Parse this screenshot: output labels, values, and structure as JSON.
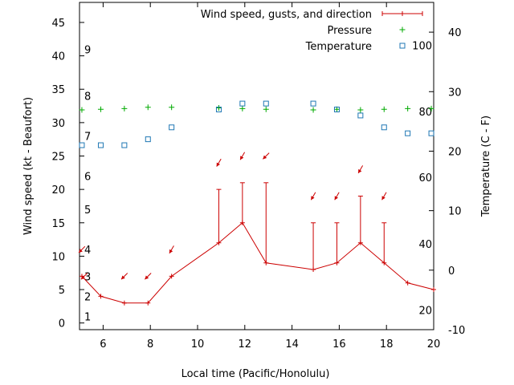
{
  "chart_data": {
    "type": "line",
    "xlabel": "Local time (Pacific/Honolulu)",
    "ylabel_left": "Wind speed (kt - Beaufort)",
    "ylabel_right": "Temperature (C - F)",
    "xlim": [
      5,
      20
    ],
    "ylim_left": [
      -1,
      48
    ],
    "ylim_right": [
      -10,
      45
    ],
    "x_ticks": [
      6,
      8,
      10,
      12,
      14,
      16,
      18,
      20
    ],
    "y_left_ticks": [
      0,
      5,
      10,
      15,
      20,
      25,
      30,
      35,
      40,
      45
    ],
    "y_right_ticks": [
      -10,
      0,
      10,
      20,
      30,
      40
    ],
    "beaufort_labels": [
      {
        "label": "1",
        "kt": 1
      },
      {
        "label": "2",
        "kt": 4
      },
      {
        "label": "3",
        "kt": 7
      },
      {
        "label": "4",
        "kt": 11
      },
      {
        "label": "5",
        "kt": 17
      },
      {
        "label": "6",
        "kt": 22
      },
      {
        "label": "7",
        "kt": 28
      },
      {
        "label": "8",
        "kt": 34
      },
      {
        "label": "9",
        "kt": 41
      }
    ],
    "fahrenheit_labels": [
      {
        "label": "20",
        "celsius": -6.7
      },
      {
        "label": "40",
        "celsius": 4.4
      },
      {
        "label": "60",
        "celsius": 15.6
      },
      {
        "label": "80",
        "celsius": 26.7
      },
      {
        "label": "100",
        "celsius": 37.8
      }
    ],
    "legend": {
      "position": "top-right",
      "entries": [
        {
          "label": "Wind speed, gusts, and direction",
          "symbol": "errorline"
        },
        {
          "label": "Pressure",
          "symbol": "plus"
        },
        {
          "label": "Temperature",
          "symbol": "square"
        }
      ]
    },
    "colors": {
      "wind": "#cc0000",
      "pressure": "#00aa00",
      "temperature": "#1f77b4"
    },
    "series": [
      {
        "name": "Wind speed, gusts, and direction",
        "axis": "left",
        "x": [
          5.1,
          5.9,
          6.9,
          7.9,
          8.9,
          10.9,
          11.9,
          12.9,
          14.9,
          15.9,
          16.9,
          17.9,
          18.9,
          20.0
        ],
        "values": [
          7,
          4,
          3,
          3,
          7,
          12,
          15,
          9,
          8,
          9,
          12,
          9,
          6,
          5
        ],
        "gusts": [
          null,
          null,
          null,
          null,
          null,
          20,
          21,
          21,
          15,
          15,
          19,
          15,
          null,
          null
        ]
      },
      {
        "name": "Wind direction arrows",
        "axis": "left",
        "x": [
          5.1,
          5.2,
          6.9,
          7.9,
          8.9,
          10.9,
          11.9,
          12.9,
          14.9,
          15.9,
          16.9,
          17.9
        ],
        "y": [
          11,
          7,
          7,
          7,
          11,
          24,
          25,
          25,
          19,
          19,
          23,
          19
        ],
        "direction_deg": [
          45,
          45,
          45,
          45,
          60,
          60,
          60,
          45,
          60,
          60,
          60,
          60
        ]
      },
      {
        "name": "Pressure",
        "axis": "left",
        "x": [
          5.1,
          5.9,
          6.9,
          7.9,
          8.9,
          10.9,
          11.9,
          12.9,
          14.9,
          15.9,
          16.9,
          17.9,
          18.9,
          19.9
        ],
        "values": [
          31.9,
          32.0,
          32.1,
          32.3,
          32.3,
          32.2,
          32.1,
          32.0,
          31.9,
          32.0,
          31.9,
          32.0,
          32.1,
          32.1
        ]
      },
      {
        "name": "Temperature",
        "axis": "right",
        "x": [
          5.1,
          5.9,
          6.9,
          7.9,
          8.9,
          10.9,
          11.9,
          12.9,
          14.9,
          15.9,
          16.9,
          17.9,
          18.9,
          19.9
        ],
        "values": [
          21,
          21,
          21,
          22,
          24,
          27,
          28,
          28,
          28,
          27,
          26,
          24,
          23,
          23
        ]
      }
    ]
  }
}
